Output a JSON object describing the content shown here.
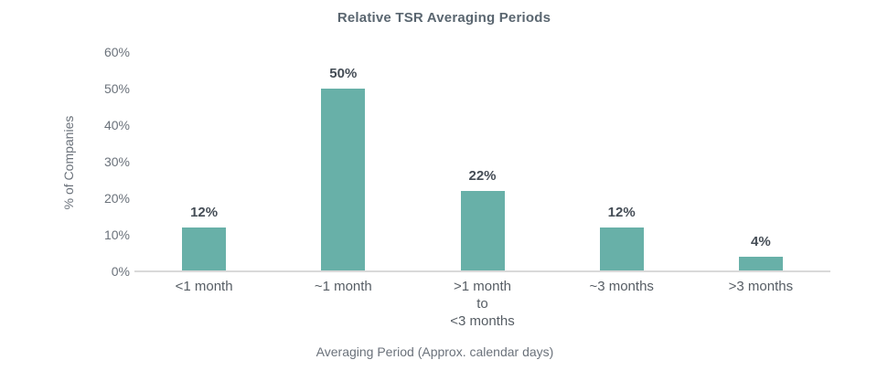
{
  "chart_data": {
    "type": "bar",
    "title": "Relative TSR Averaging Periods",
    "xlabel": "Averaging Period (Approx. calendar days)",
    "ylabel": "% of Companies",
    "categories": [
      "<1 month",
      "~1 month",
      ">1 month\nto\n<3 months",
      "~3 months",
      ">3 months"
    ],
    "values": [
      12,
      50,
      22,
      12,
      4
    ],
    "value_labels": [
      "12%",
      "50%",
      "22%",
      "12%",
      "4%"
    ],
    "y_tick_values": [
      0,
      10,
      20,
      30,
      40,
      50,
      60
    ],
    "y_tick_labels": [
      "0%",
      "10%",
      "20%",
      "30%",
      "40%",
      "50%",
      "60%"
    ],
    "ylim": [
      0,
      60
    ],
    "grid": "off",
    "legend": "none",
    "colors": {
      "bar_fill": "#68b0a8",
      "axis_line": "#d9d9d9",
      "title_text": "#5a6670",
      "value_label_text": "#454d56",
      "tick_text": "#6b727b",
      "category_text": "#565d64"
    }
  }
}
